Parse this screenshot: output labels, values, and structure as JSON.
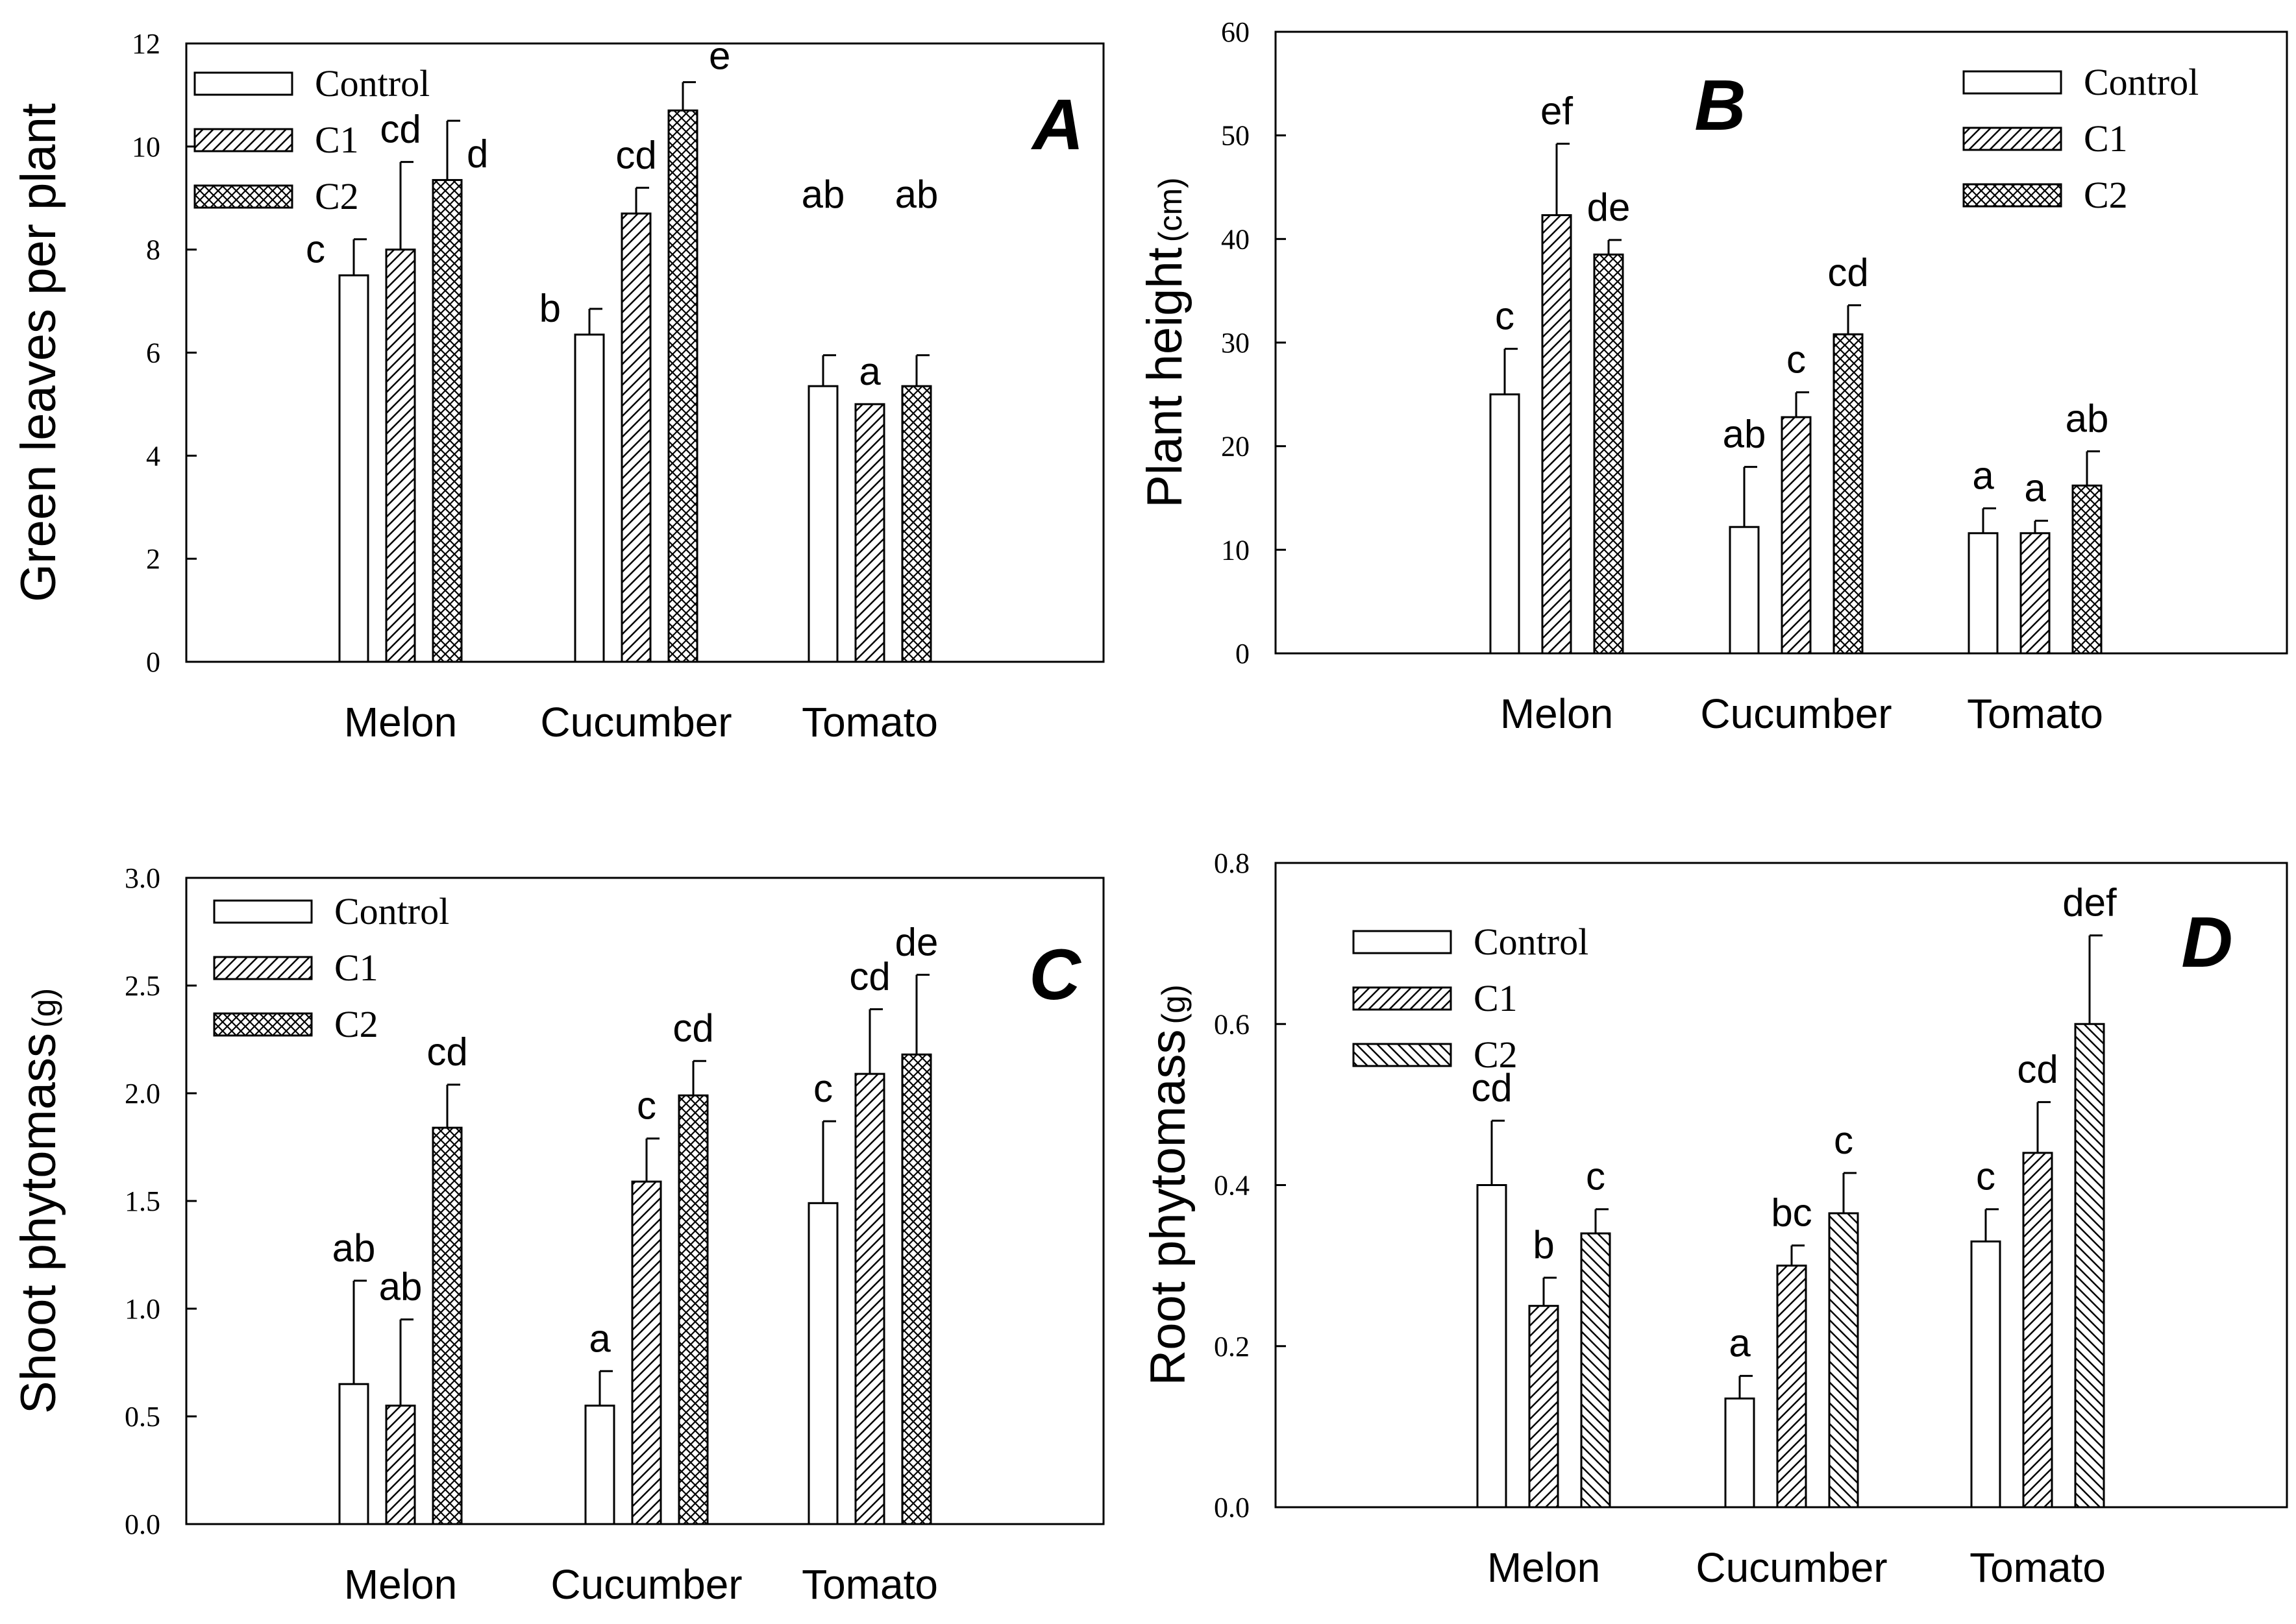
{
  "chart_data": [
    {
      "panel": "A",
      "type": "bar",
      "ylabel": "Green leaves per plant",
      "ylim": [
        0,
        12
      ],
      "yticks": [
        "0",
        "2",
        "4",
        "6",
        "8",
        "10",
        "12"
      ],
      "categories": [
        "Melon",
        "Cucumber",
        "Tomato"
      ],
      "legend": [
        "Control",
        "C1",
        "C2"
      ],
      "legend_position": "top-left",
      "series": [
        {
          "name": "Control",
          "values": [
            7.5,
            6.35,
            5.35
          ],
          "errors": [
            0.7,
            0.5,
            0.6
          ],
          "labels": [
            "c",
            "b",
            "ab"
          ]
        },
        {
          "name": "C1",
          "values": [
            8.0,
            8.7,
            5.0
          ],
          "errors": [
            1.7,
            0.5,
            0.0
          ],
          "labels": [
            "cd",
            "cd",
            "a"
          ]
        },
        {
          "name": "C2",
          "values": [
            9.35,
            10.7,
            5.35
          ],
          "errors": [
            1.15,
            0.55,
            0.6
          ],
          "labels": [
            "d",
            "e",
            "ab"
          ]
        }
      ]
    },
    {
      "panel": "B",
      "type": "bar",
      "ylabel": "Plant height",
      "ylabel_unit": "(cm)",
      "ylim": [
        0,
        60
      ],
      "yticks": [
        "0",
        "10",
        "20",
        "30",
        "40",
        "50",
        "60"
      ],
      "categories": [
        "Melon",
        "Cucumber",
        "Tomato"
      ],
      "legend": [
        "Control",
        "C1",
        "C2"
      ],
      "legend_position": "top-right",
      "series": [
        {
          "name": "Control",
          "values": [
            25,
            12.2,
            11.6
          ],
          "errors": [
            4.4,
            5.8,
            2.4
          ],
          "labels": [
            "c",
            "ab",
            "a"
          ]
        },
        {
          "name": "C1",
          "values": [
            42.3,
            22.8,
            11.6
          ],
          "errors": [
            6.9,
            2.4,
            1.2
          ],
          "labels": [
            "ef",
            "c",
            "a"
          ]
        },
        {
          "name": "C2",
          "values": [
            38.5,
            30.8,
            16.2
          ],
          "errors": [
            1.4,
            2.8,
            3.3
          ],
          "labels": [
            "de",
            "cd",
            "ab"
          ]
        }
      ]
    },
    {
      "panel": "C",
      "type": "bar",
      "ylabel": "Shoot phytomass",
      "ylabel_unit": "(g)",
      "ylim": [
        0,
        3
      ],
      "yticks": [
        "0.0",
        "0.5",
        "1.0",
        "1.5",
        "2.0",
        "2.5",
        "3.0"
      ],
      "categories": [
        "Melon",
        "Cucumber",
        "Tomato"
      ],
      "legend": [
        "Control",
        "C1",
        "C2"
      ],
      "legend_position": "top-left",
      "series": [
        {
          "name": "Control",
          "values": [
            0.65,
            0.55,
            1.49
          ],
          "errors": [
            0.48,
            0.16,
            0.38
          ],
          "labels": [
            "ab",
            "a",
            "c"
          ]
        },
        {
          "name": "C1",
          "values": [
            0.55,
            1.59,
            2.09
          ],
          "errors": [
            0.4,
            0.2,
            0.3
          ],
          "labels": [
            "ab",
            "c",
            "cd"
          ]
        },
        {
          "name": "C2",
          "values": [
            1.84,
            1.99,
            2.18
          ],
          "errors": [
            0.2,
            0.16,
            0.37
          ],
          "labels": [
            "cd",
            "cd",
            "de"
          ]
        }
      ]
    },
    {
      "panel": "D",
      "type": "bar",
      "ylabel": "Root phytomass",
      "ylabel_unit": "(g)",
      "ylim": [
        0,
        0.8
      ],
      "yticks": [
        "0.0",
        "0.2",
        "0.4",
        "0.6",
        "0.8"
      ],
      "categories": [
        "Melon",
        "Cucumber",
        "Tomato"
      ],
      "legend": [
        "Control",
        "C1",
        "C2"
      ],
      "legend_position": "top-left",
      "series": [
        {
          "name": "Control",
          "values": [
            0.4,
            0.135,
            0.33
          ],
          "errors": [
            0.08,
            0.028,
            0.04
          ],
          "labels": [
            "cd",
            "a",
            "c"
          ]
        },
        {
          "name": "C1",
          "values": [
            0.25,
            0.3,
            0.44
          ],
          "errors": [
            0.035,
            0.025,
            0.063
          ],
          "labels": [
            "b",
            "bc",
            "cd"
          ]
        },
        {
          "name": "C2",
          "values": [
            0.34,
            0.365,
            0.6
          ],
          "errors": [
            0.03,
            0.05,
            0.11
          ],
          "labels": [
            "c",
            "c",
            "def"
          ]
        }
      ]
    }
  ]
}
